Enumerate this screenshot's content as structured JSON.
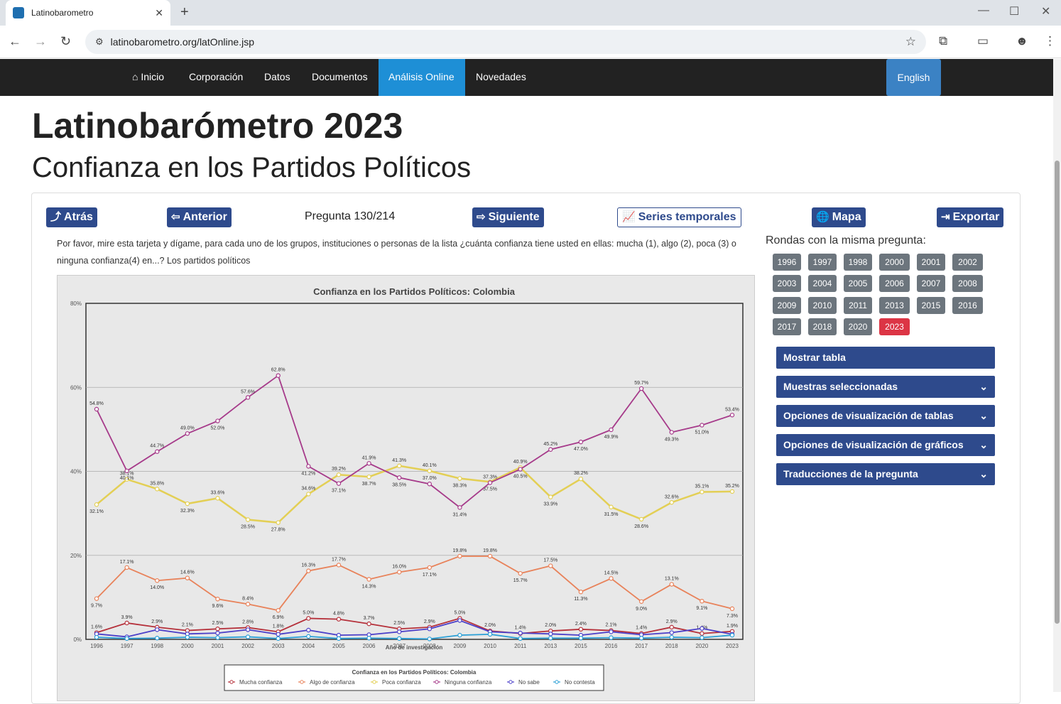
{
  "browser": {
    "tab_title": "Latinobarometro",
    "url": "latinobarometro.org/latOnline.jsp"
  },
  "nav": {
    "items": [
      "Inicio",
      "Corporación",
      "Datos",
      "Documentos",
      "Análisis Online",
      "Novedades"
    ],
    "active": "Análisis Online",
    "language_button": "English"
  },
  "page": {
    "title": "Latinobarómetro 2023",
    "subtitle": "Confianza en los Partidos Políticos"
  },
  "toolbar": {
    "back": "Atrás",
    "previous": "Anterior",
    "question_counter": "Pregunta 130/214",
    "next": "Siguiente",
    "time_series": "Series temporales",
    "map": "Mapa",
    "export": "Exportar"
  },
  "question_text": "Por favor, mire esta tarjeta y dígame, para cada uno de los grupos, instituciones o personas de la lista ¿cuánta confianza tiene usted en ellas: mucha (1), algo (2), poca (3) o ninguna confianza(4) en...? Los partidos políticos",
  "rounds": {
    "title": "Rondas con la misma pregunta:",
    "years": [
      "1996",
      "1997",
      "1998",
      "2000",
      "2001",
      "2002",
      "2003",
      "2004",
      "2005",
      "2006",
      "2007",
      "2008",
      "2009",
      "2010",
      "2011",
      "2013",
      "2015",
      "2016",
      "2017",
      "2018",
      "2020",
      "2023"
    ],
    "selected": "2023"
  },
  "accordions": [
    {
      "label": "Mostrar tabla",
      "chevron": false
    },
    {
      "label": "Muestras seleccionadas",
      "chevron": true
    },
    {
      "label": "Opciones de visualización de tablas",
      "chevron": true
    },
    {
      "label": "Opciones de visualización de gráficos",
      "chevron": true
    },
    {
      "label": "Traducciones de la pregunta",
      "chevron": true
    }
  ],
  "chart_data": {
    "type": "line",
    "title": "Confianza en los Partidos Políticos: Colombia",
    "xlabel": "Año de investigación",
    "ylabel": "",
    "ylim": [
      0,
      80
    ],
    "yticks": [
      "0%",
      "20%",
      "40%",
      "60%",
      "80%"
    ],
    "categories": [
      "1996",
      "1997",
      "1998",
      "2000",
      "2001",
      "2002",
      "2003",
      "2004",
      "2005",
      "2006",
      "2007",
      "2008",
      "2009",
      "2010",
      "2011",
      "2013",
      "2015",
      "2016",
      "2017",
      "2018",
      "2020",
      "2023"
    ],
    "legend_title": "Confianza en los Partidos Políticos: Colombia",
    "legend_position": "bottom",
    "series": [
      {
        "name": "Mucha confianza",
        "color": "#b5303a",
        "values": [
          1.6,
          3.9,
          2.9,
          2.1,
          2.5,
          2.8,
          1.8,
          5.0,
          4.8,
          3.7,
          2.5,
          2.9,
          5.0,
          2.0,
          1.4,
          2.0,
          2.4,
          2.1,
          1.4,
          2.9,
          1.4,
          1.9
        ]
      },
      {
        "name": "Algo de confianza",
        "color": "#e8825a",
        "values": [
          9.7,
          17.1,
          14.0,
          14.6,
          9.6,
          8.4,
          6.9,
          16.3,
          17.7,
          14.3,
          16.0,
          17.1,
          19.8,
          19.8,
          15.7,
          17.5,
          11.3,
          14.5,
          9.0,
          13.1,
          9.1,
          7.3
        ]
      },
      {
        "name": "Poca confianza",
        "color": "#e3cf55",
        "values": [
          32.1,
          38.1,
          35.8,
          32.3,
          33.6,
          28.5,
          27.8,
          34.6,
          39.2,
          38.7,
          41.3,
          40.1,
          38.3,
          37.5,
          40.9,
          33.9,
          38.2,
          31.5,
          28.6,
          32.6,
          35.1,
          35.2
        ]
      },
      {
        "name": "Ninguna confianza",
        "color": "#a63a8a",
        "values": [
          54.8,
          40.1,
          44.7,
          49.0,
          52.0,
          57.6,
          62.8,
          41.2,
          37.1,
          41.9,
          38.5,
          37.0,
          31.4,
          37.3,
          40.5,
          45.2,
          47.0,
          49.9,
          59.7,
          49.3,
          51.0,
          53.4
        ]
      },
      {
        "name": "No sabe",
        "color": "#4b3fc9",
        "values": [
          1.3,
          0.6,
          2.3,
          1.3,
          1.5,
          2.3,
          1.2,
          2.2,
          1.0,
          1.1,
          1.8,
          2.5,
          4.5,
          1.8,
          1.5,
          1.3,
          1.0,
          1.8,
          1.1,
          1.6,
          2.6,
          1.2
        ]
      },
      {
        "name": "No contesta",
        "color": "#2a9fd6",
        "values": [
          0.5,
          0.2,
          0.3,
          0.5,
          0.4,
          0.6,
          0.2,
          0.7,
          0.2,
          0.3,
          0.2,
          0.1,
          1.0,
          1.2,
          0.2,
          0.3,
          0.3,
          0.4,
          0.3,
          0.5,
          0.4,
          1.0
        ]
      }
    ]
  }
}
